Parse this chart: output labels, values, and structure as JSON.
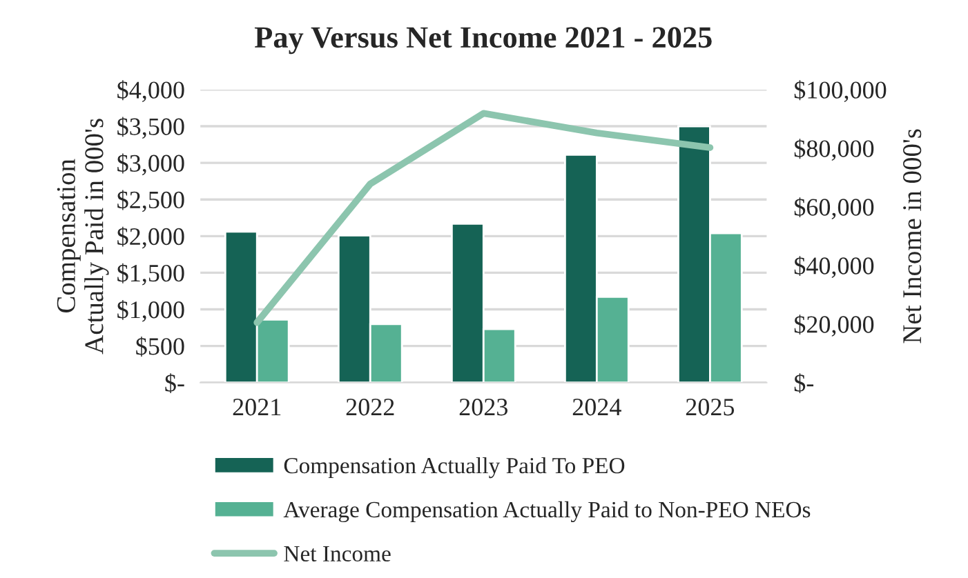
{
  "chart_data": {
    "type": "bar",
    "title": "Pay Versus Net Income 2021 - 2025",
    "ylabel": "Compensation\nActually Paid in 000's",
    "y2label": "Net Income in 000's",
    "categories": [
      "2021",
      "2022",
      "2023",
      "2024",
      "2025"
    ],
    "series": [
      {
        "name": "Compensation Actually Paid To PEO",
        "color": "#156355",
        "values": [
          2060,
          2010,
          2170,
          3110,
          3500
        ]
      },
      {
        "name": "Average Compensation Actually Paid to Non-PEO NEOs",
        "color": "#55b193",
        "values": [
          860,
          800,
          730,
          1170,
          2040
        ]
      },
      {
        "name": "Net Income",
        "type": "line",
        "axis": "y2",
        "color": "#8cc5ae",
        "values": [
          20500,
          67800,
          91900,
          85200,
          80200
        ]
      }
    ],
    "ylim": [
      0,
      4000
    ],
    "yticks": [
      {
        "value": 0,
        "label": "$-"
      },
      {
        "value": 500,
        "label": "$500"
      },
      {
        "value": 1000,
        "label": "$1,000"
      },
      {
        "value": 1500,
        "label": "$1,500"
      },
      {
        "value": 2000,
        "label": "$2,000"
      },
      {
        "value": 2500,
        "label": "$2,500"
      },
      {
        "value": 3000,
        "label": "$3,000"
      },
      {
        "value": 3500,
        "label": "$3,500"
      },
      {
        "value": 4000,
        "label": "$4,000"
      }
    ],
    "y2lim": [
      0,
      100000
    ],
    "y2ticks": [
      {
        "value": 0,
        "label": "$-"
      },
      {
        "value": 20000,
        "label": "$20,000"
      },
      {
        "value": 40000,
        "label": "$40,000"
      },
      {
        "value": 60000,
        "label": "$60,000"
      },
      {
        "value": 80000,
        "label": "$80,000"
      },
      {
        "value": 100000,
        "label": "$100,000"
      }
    ],
    "grid": "y",
    "legend": "bottom",
    "marker": "none",
    "line_style": "solid"
  }
}
